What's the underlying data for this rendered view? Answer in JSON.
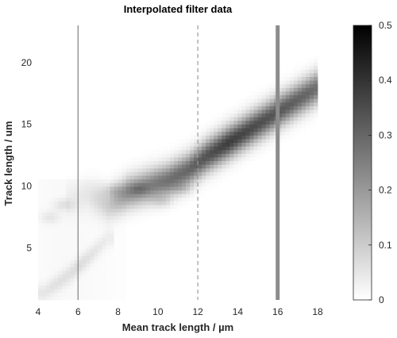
{
  "chart_data": {
    "type": "heatmap",
    "title": "Interpolated filter data",
    "xlabel": "Mean track length / µm",
    "ylabel": "Track length / um",
    "xlim": [
      4,
      18
    ],
    "ylim": [
      0.8,
      23
    ],
    "xticks": [
      4,
      6,
      8,
      10,
      12,
      14,
      16,
      18
    ],
    "yticks": [
      5,
      10,
      15,
      20
    ],
    "colorbar": {
      "range": [
        0,
        0.5
      ],
      "ticks": [
        0,
        0.1,
        0.2,
        0.3,
        0.4,
        0.5
      ],
      "colormap": "gray-reversed",
      "low_color": "#ffffff",
      "high_color": "#000000"
    },
    "grid": false,
    "vertical_lines": [
      {
        "x": 6,
        "style": "solid",
        "color": "#808080",
        "width": "thin"
      },
      {
        "x": 12,
        "style": "dashed",
        "color": "#9a9a9a",
        "width": "thin"
      },
      {
        "x": 16,
        "style": "solid",
        "color": "#8c8c8c",
        "width": "thick"
      }
    ],
    "ridge": {
      "main": [
        [
          5.5,
          9.0,
          0.02
        ],
        [
          6.5,
          9.3,
          0.04
        ],
        [
          7.5,
          8.6,
          0.1
        ],
        [
          8.5,
          9.5,
          0.22
        ],
        [
          9.5,
          10.0,
          0.25
        ],
        [
          10.5,
          10.5,
          0.28
        ],
        [
          11.5,
          11.3,
          0.3
        ],
        [
          12.5,
          12.5,
          0.34
        ],
        [
          13.5,
          13.5,
          0.38
        ],
        [
          14.5,
          14.5,
          0.36
        ],
        [
          15.5,
          15.5,
          0.34
        ],
        [
          16.5,
          16.5,
          0.32
        ],
        [
          17.5,
          17.5,
          0.3
        ],
        [
          18.0,
          18.0,
          0.28
        ]
      ],
      "secondary": [
        [
          4.3,
          1.4,
          0.04
        ],
        [
          5.0,
          2.2,
          0.05
        ],
        [
          5.5,
          2.8,
          0.05
        ],
        [
          6.0,
          3.5,
          0.06
        ],
        [
          6.5,
          4.2,
          0.05
        ],
        [
          7.0,
          5.0,
          0.04
        ],
        [
          7.5,
          5.8,
          0.03
        ]
      ]
    }
  }
}
